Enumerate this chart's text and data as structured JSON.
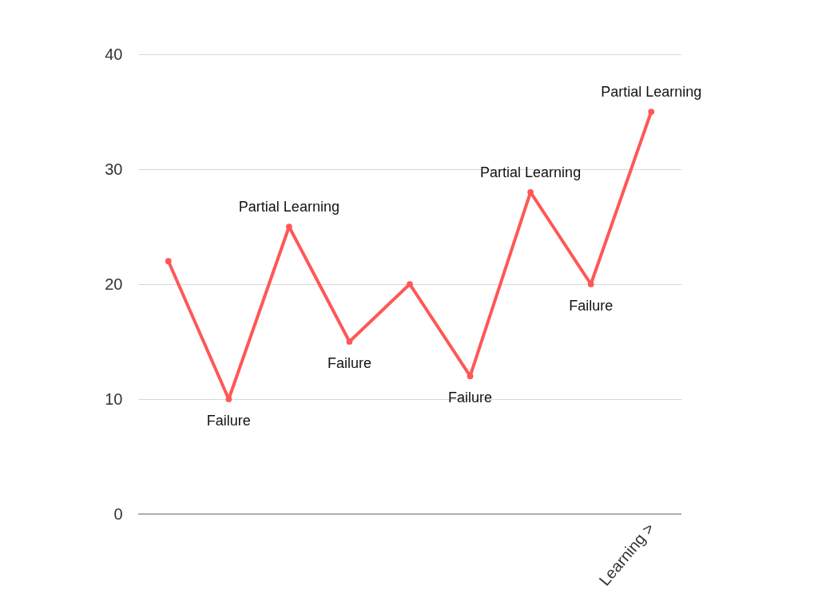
{
  "chart_data": {
    "type": "line",
    "categories": [
      null,
      null,
      null,
      null,
      null,
      null,
      null,
      null,
      "Learning >"
    ],
    "series": [
      {
        "color": "#ff5757",
        "values": [
          22,
          10,
          25,
          15,
          20,
          12,
          28,
          20,
          35
        ],
        "value_labels": [
          null,
          "Failure",
          "Partial Learning",
          "Failure",
          null,
          "Failure",
          "Partial Learning",
          "Failure",
          "Partial Learning"
        ]
      }
    ],
    "ylim": [
      0,
      40
    ],
    "yticks": [
      0,
      10,
      20,
      30,
      40
    ],
    "grid": "y",
    "marker": "circle",
    "line_style": "solid"
  }
}
